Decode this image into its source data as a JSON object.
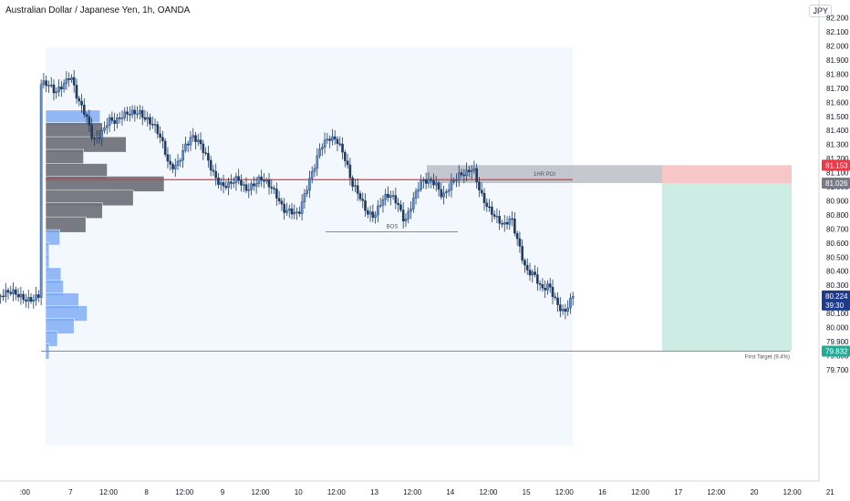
{
  "header": {
    "title": "Australian Dollar / Japanese Yen, 1h, OANDA",
    "currency": "JPY"
  },
  "chart_data": {
    "type": "candlestick",
    "symbol": "AUDJPY",
    "timeframe": "1h",
    "ylim": [
      79.7,
      82.2
    ],
    "y_ticks": [
      "82.200",
      "82.100",
      "82.000",
      "81.900",
      "81.800",
      "81.700",
      "81.600",
      "81.500",
      "81.400",
      "81.300",
      "81.200",
      "81.100",
      "81.000",
      "80.900",
      "80.800",
      "80.700",
      "80.600",
      "80.500",
      "80.400",
      "80.300",
      "80.200",
      "80.100",
      "80.000",
      "79.900",
      "79.800",
      "79.700"
    ],
    "x_ticks": [
      {
        "label": ":00",
        "t": -2
      },
      {
        "label": "7",
        "t": 4
      },
      {
        "label": "12:00",
        "t": 9
      },
      {
        "label": "8",
        "t": 14
      },
      {
        "label": "12:00",
        "t": 19
      },
      {
        "label": "9",
        "t": 24
      },
      {
        "label": "12:00",
        "t": 29
      },
      {
        "label": "10",
        "t": 34
      },
      {
        "label": "12:00",
        "t": 39
      },
      {
        "label": "13",
        "t": 44
      },
      {
        "label": "12:00",
        "t": 49
      },
      {
        "label": "14",
        "t": 54
      },
      {
        "label": "12:00",
        "t": 59
      },
      {
        "label": "15",
        "t": 64
      },
      {
        "label": "12:00",
        "t": 69
      },
      {
        "label": "16",
        "t": 74
      },
      {
        "label": "12:00",
        "t": 79
      },
      {
        "label": "17",
        "t": 84
      },
      {
        "label": "12:00",
        "t": 89
      },
      {
        "label": "20",
        "t": 94
      },
      {
        "label": "12:00",
        "t": 99
      },
      {
        "label": "21",
        "t": 104
      }
    ],
    "close_path": [
      [
        0,
        81.72
      ],
      [
        1,
        81.7
      ],
      [
        2,
        81.66
      ],
      [
        3,
        81.75
      ],
      [
        4,
        81.82
      ],
      [
        5,
        81.6
      ],
      [
        6,
        81.48
      ],
      [
        7,
        81.32
      ],
      [
        8,
        81.4
      ],
      [
        9,
        81.5
      ],
      [
        10,
        81.45
      ],
      [
        11,
        81.48
      ],
      [
        12,
        81.52
      ],
      [
        13,
        81.56
      ],
      [
        14,
        81.5
      ],
      [
        15,
        81.42
      ],
      [
        16,
        81.3
      ],
      [
        17,
        81.14
      ],
      [
        18,
        81.18
      ],
      [
        19,
        81.3
      ],
      [
        20,
        81.34
      ],
      [
        21,
        81.28
      ],
      [
        22,
        81.2
      ],
      [
        23,
        81.1
      ],
      [
        24,
        81.02
      ],
      [
        25,
        81.0
      ],
      [
        26,
        81.03
      ],
      [
        27,
        80.98
      ],
      [
        28,
        81.04
      ],
      [
        29,
        81.08
      ],
      [
        30,
        81.0
      ],
      [
        31,
        80.92
      ],
      [
        32,
        80.84
      ],
      [
        33,
        80.86
      ],
      [
        34,
        80.82
      ],
      [
        35,
        80.95
      ],
      [
        36,
        81.1
      ],
      [
        37,
        81.3
      ],
      [
        38,
        81.38
      ],
      [
        39,
        81.35
      ],
      [
        40,
        81.2
      ],
      [
        41,
        81.0
      ],
      [
        42,
        80.95
      ],
      [
        43,
        80.85
      ],
      [
        44,
        80.8
      ],
      [
        45,
        80.88
      ],
      [
        46,
        80.92
      ],
      [
        47,
        80.9
      ],
      [
        48,
        80.78
      ],
      [
        49,
        80.9
      ],
      [
        50,
        81.0
      ],
      [
        51,
        81.02
      ],
      [
        52,
        81.04
      ],
      [
        53,
        80.96
      ],
      [
        54,
        81.02
      ],
      [
        55,
        81.05
      ],
      [
        56,
        81.07
      ],
      [
        57,
        81.15
      ],
      [
        58,
        80.98
      ],
      [
        59,
        80.85
      ],
      [
        60,
        80.75
      ],
      [
        61,
        80.7
      ],
      [
        62,
        80.8
      ],
      [
        63,
        80.62
      ],
      [
        64,
        80.4
      ],
      [
        65,
        80.35
      ],
      [
        66,
        80.25
      ],
      [
        67,
        80.32
      ],
      [
        68,
        80.2
      ],
      [
        69,
        80.1
      ],
      [
        70,
        80.18
      ],
      [
        71,
        80.3
      ],
      [
        72,
        80.12
      ],
      [
        73,
        80.0
      ],
      [
        74,
        79.92
      ],
      [
        75,
        80.05
      ],
      [
        76,
        80.15
      ],
      [
        77,
        80.2
      ],
      [
        78,
        80.22
      ],
      [
        79,
        80.224
      ]
    ],
    "volume_profile": [
      {
        "price": 81.49,
        "width": 0.46,
        "color": "blue"
      },
      {
        "price": 81.4,
        "width": 0.48,
        "color": "gray"
      },
      {
        "price": 81.3,
        "width": 0.68,
        "color": "gray"
      },
      {
        "price": 81.21,
        "width": 0.32,
        "color": "gray"
      },
      {
        "price": 81.11,
        "width": 0.52,
        "color": "gray"
      },
      {
        "price": 81.02,
        "width": 1.0,
        "color": "gray"
      },
      {
        "price": 80.92,
        "width": 0.74,
        "color": "gray"
      },
      {
        "price": 80.83,
        "width": 0.48,
        "color": "gray"
      },
      {
        "price": 80.73,
        "width": 0.34,
        "color": "gray"
      },
      {
        "price": 80.64,
        "width": 0.12,
        "color": "blue"
      },
      {
        "price": 80.55,
        "width": 0.03,
        "color": "blue"
      },
      {
        "price": 80.46,
        "width": 0.03,
        "color": "blue"
      },
      {
        "price": 80.37,
        "width": 0.13,
        "color": "blue"
      },
      {
        "price": 80.28,
        "width": 0.15,
        "color": "blue"
      },
      {
        "price": 80.19,
        "width": 0.28,
        "color": "blue"
      },
      {
        "price": 80.1,
        "width": 0.35,
        "color": "blue"
      },
      {
        "price": 80.01,
        "width": 0.24,
        "color": "blue"
      },
      {
        "price": 79.92,
        "width": 0.1,
        "color": "blue"
      },
      {
        "price": 79.83,
        "width": 0.03,
        "color": "blue"
      }
    ],
    "annotations": {
      "poi_label": "1HR POI",
      "poi_range": [
        81.026,
        81.153
      ],
      "bos_label": "BOS",
      "bos_price": 80.68,
      "target_label": "First Target (9.4%)",
      "target_price": 79.832,
      "stop_price": 81.153,
      "entry_price": 81.026,
      "red_line_price": 81.05
    },
    "price_labels": [
      {
        "text": "81.153",
        "color": "#f23645"
      },
      {
        "text": "81.026",
        "color": "#787b86"
      },
      {
        "text": "80.224",
        "sub": "39:30",
        "color": "#1e3a8a"
      },
      {
        "text": "79.832",
        "color": "#22ab94"
      }
    ]
  }
}
